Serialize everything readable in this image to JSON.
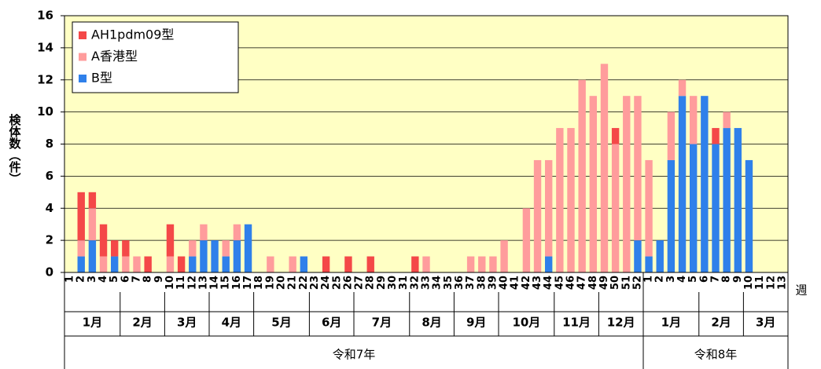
{
  "chart_data": {
    "type": "stacked_bar",
    "y_label": "検体数（件）",
    "x_unit_label": "週",
    "categories": [
      "1",
      "2",
      "3",
      "4",
      "5",
      "6",
      "7",
      "8",
      "9",
      "10",
      "11",
      "12",
      "13",
      "14",
      "15",
      "16",
      "17",
      "18",
      "19",
      "20",
      "21",
      "22",
      "23",
      "24",
      "25",
      "26",
      "27",
      "28",
      "29",
      "30",
      "31",
      "32",
      "33",
      "34",
      "35",
      "36",
      "37",
      "38",
      "39",
      "40",
      "41",
      "42",
      "43",
      "44",
      "45",
      "46",
      "47",
      "48",
      "49",
      "50",
      "51",
      "52",
      "1",
      "2",
      "3",
      "4",
      "5",
      "6",
      "7",
      "8",
      "9",
      "10",
      "11",
      "12",
      "13"
    ],
    "series": [
      {
        "name": "AH1pdm09型",
        "color": "#f44848",
        "values": [
          0,
          3,
          1,
          2,
          1,
          1,
          0,
          1,
          0,
          2,
          1,
          0,
          0,
          0,
          0,
          0,
          0,
          0,
          0,
          0,
          0,
          0,
          0,
          1,
          0,
          1,
          0,
          1,
          0,
          0,
          0,
          1,
          0,
          0,
          0,
          0,
          0,
          0,
          0,
          0,
          0,
          0,
          0,
          0,
          0,
          0,
          0,
          0,
          0,
          1,
          0,
          0,
          0,
          0,
          0,
          0,
          0,
          0,
          1,
          0,
          0,
          0,
          0,
          0,
          0
        ]
      },
      {
        "name": "A香港型",
        "color": "#ff9c9c",
        "values": [
          0,
          1,
          2,
          1,
          0,
          1,
          1,
          0,
          0,
          1,
          0,
          1,
          1,
          0,
          1,
          1,
          0,
          0,
          1,
          0,
          1,
          0,
          0,
          0,
          0,
          0,
          0,
          0,
          0,
          0,
          0,
          0,
          1,
          0,
          0,
          0,
          1,
          1,
          1,
          2,
          0,
          4,
          7,
          6,
          9,
          9,
          12,
          11,
          13,
          8,
          11,
          9,
          6,
          0,
          3,
          1,
          3,
          0,
          0,
          1,
          0,
          0,
          0,
          0,
          0
        ]
      },
      {
        "name": "B型",
        "color": "#2f80ea",
        "values": [
          0,
          1,
          2,
          0,
          1,
          0,
          0,
          0,
          0,
          0,
          0,
          1,
          2,
          2,
          1,
          2,
          3,
          0,
          0,
          0,
          0,
          1,
          0,
          0,
          0,
          0,
          0,
          0,
          0,
          0,
          0,
          0,
          0,
          0,
          0,
          0,
          0,
          0,
          0,
          0,
          0,
          0,
          0,
          1,
          0,
          0,
          0,
          0,
          0,
          0,
          0,
          2,
          1,
          2,
          7,
          11,
          8,
          11,
          8,
          9,
          9,
          7,
          0,
          0,
          0
        ]
      }
    ],
    "ylim": [
      0,
      16
    ],
    "yticks": [
      0,
      2,
      4,
      6,
      8,
      10,
      12,
      14,
      16
    ],
    "grid": true,
    "legend_position": "upper left",
    "plot_background": "#ffffc4",
    "month_labels": [
      "1月",
      "2月",
      "3月",
      "4月",
      "5月",
      "6月",
      "7月",
      "8月",
      "9月",
      "10月",
      "11月",
      "12月",
      "1月",
      "2月",
      "3月"
    ],
    "era_labels": [
      "令和7年",
      "令和8年"
    ]
  }
}
